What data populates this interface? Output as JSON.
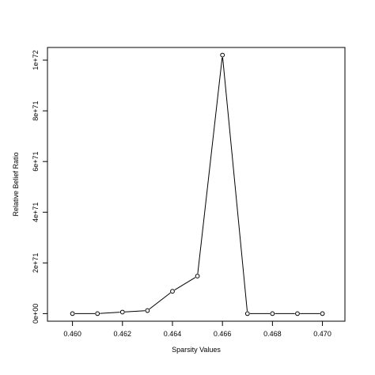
{
  "chart_data": {
    "type": "line",
    "title": "",
    "xlabel": "Sparsity Values",
    "ylabel": "Relative Belief Ratio",
    "xlim": [
      0.46,
      0.47
    ],
    "ylim": [
      0,
      1.05e+72
    ],
    "x_ticks": [
      0.46,
      0.462,
      0.464,
      0.466,
      0.468,
      0.47
    ],
    "x_tick_labels": [
      "0.460",
      "0.462",
      "0.464",
      "0.466",
      "0.468",
      "0.470"
    ],
    "y_ticks": [
      0,
      2e+71,
      4e+71,
      6e+71,
      8e+71,
      1e+72
    ],
    "y_tick_labels": [
      "0e+00",
      "2e+71",
      "4e+71",
      "6e+71",
      "8e+71",
      "1e+72"
    ],
    "grid": false,
    "legend": "none",
    "marker": "open-circle",
    "line_color": "#000000",
    "x": [
      0.46,
      0.461,
      0.462,
      0.463,
      0.464,
      0.465,
      0.466,
      0.467,
      0.468,
      0.469,
      0.47
    ],
    "y": [
      0,
      0,
      6e+69,
      1.2e+70,
      8.8e+70,
      1.48e+71,
      1.02e+72,
      0,
      0,
      0,
      0
    ]
  }
}
